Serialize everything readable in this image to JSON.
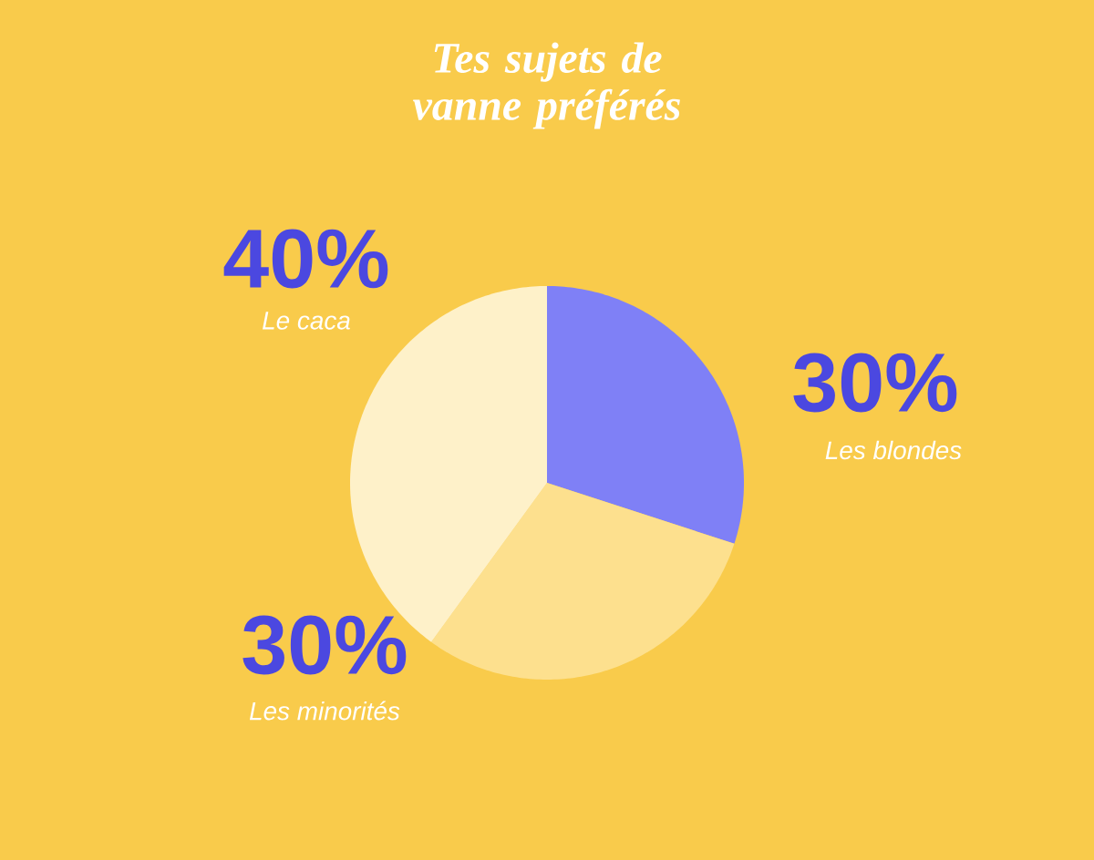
{
  "chart_data": {
    "type": "pie",
    "title": "Tes sujets de vanne préférés",
    "categories": [
      "Les blondes",
      "Les minorités",
      "Le caca"
    ],
    "values": [
      30,
      30,
      40
    ],
    "value_labels": [
      "30%",
      "30%",
      "40%"
    ],
    "colors": [
      "#7f80f6",
      "#fde08e",
      "#fef1c9"
    ]
  }
}
